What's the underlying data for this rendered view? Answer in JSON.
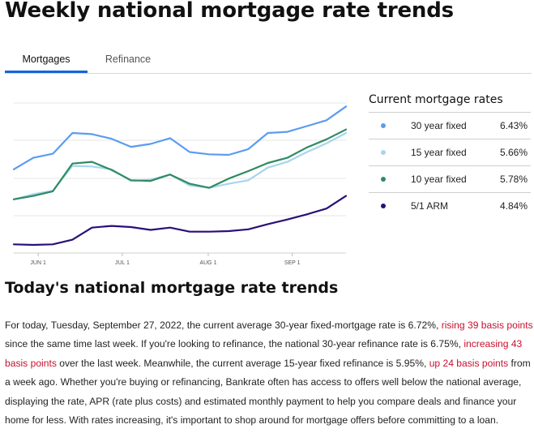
{
  "page": {
    "title": "Weekly national mortgage rate trends"
  },
  "tabs": [
    {
      "label": "Mortgages",
      "active": true
    },
    {
      "label": "Refinance",
      "active": false
    }
  ],
  "chart_data": {
    "type": "line",
    "title": "",
    "xlabel": "",
    "ylabel": "",
    "x_ticks": [
      "JUN 1",
      "JUL 1",
      "AUG 1",
      "SEP 1"
    ],
    "x": [
      0,
      1,
      2,
      3,
      4,
      5,
      6,
      7,
      8,
      9,
      10,
      11,
      12,
      13,
      14,
      15,
      16,
      17
    ],
    "x_tick_positions": [
      1.25,
      5.55,
      9.95,
      14.25
    ],
    "ylim": [
      4.2,
      6.8
    ],
    "grid": "horizontal",
    "legend": "none",
    "series": [
      {
        "color": "#5b9cf0",
        "values": [
          5.65,
          5.85,
          5.92,
          6.28,
          6.26,
          6.18,
          6.04,
          6.09,
          6.19,
          5.95,
          5.91,
          5.9,
          6.0,
          6.28,
          6.3,
          6.4,
          6.5,
          6.74
        ]
      },
      {
        "color": "#a9d4ee",
        "values": [
          5.13,
          5.22,
          5.28,
          5.71,
          5.7,
          5.65,
          5.45,
          5.47,
          5.56,
          5.37,
          5.33,
          5.4,
          5.46,
          5.68,
          5.78,
          5.95,
          6.1,
          6.28
        ]
      },
      {
        "color": "#2e8b62",
        "values": [
          5.13,
          5.19,
          5.27,
          5.75,
          5.78,
          5.64,
          5.46,
          5.45,
          5.56,
          5.4,
          5.33,
          5.49,
          5.62,
          5.76,
          5.85,
          6.03,
          6.17,
          6.34
        ]
      },
      {
        "color": "#2a0f78",
        "values": [
          4.35,
          4.34,
          4.35,
          4.43,
          4.64,
          4.67,
          4.65,
          4.6,
          4.64,
          4.57,
          4.57,
          4.58,
          4.61,
          4.7,
          4.78,
          4.87,
          4.97,
          5.19
        ]
      }
    ]
  },
  "current_rates": {
    "title": "Current mortgage rates",
    "rows": [
      {
        "label": "30 year fixed",
        "value": "6.43%",
        "color": "#5b9cf0"
      },
      {
        "label": "15 year fixed",
        "value": "5.66%",
        "color": "#a9d4ee"
      },
      {
        "label": "10 year fixed",
        "value": "5.78%",
        "color": "#2e8b62"
      },
      {
        "label": "5/1 ARM",
        "value": "4.84%",
        "color": "#2a0f78"
      }
    ]
  },
  "article": {
    "title": "Today's national mortgage rate trends",
    "p1": "For today, Tuesday, September 27, 2022, the current average 30-year fixed-mortgage rate is 6.72%, ",
    "link1": "rising 39 basis points",
    "p2": " since the same time last week. If you're looking to refinance, the national 30-year refinance rate is 6.75%, ",
    "link2": "increasing 43 basis points",
    "p3": " over the last week. Meanwhile, the current average 15-year fixed refinance is 5.95%, ",
    "link3": "up 24 basis points",
    "p4": " from a week ago. Whether you're buying or refinancing, Bankrate often has access to offers well below the national average, displaying the rate, APR (rate plus costs) and estimated monthly payment to help you compare deals and finance your home for less. With rates increasing, it's important to shop around for mortgage offers before committing to a loan."
  }
}
